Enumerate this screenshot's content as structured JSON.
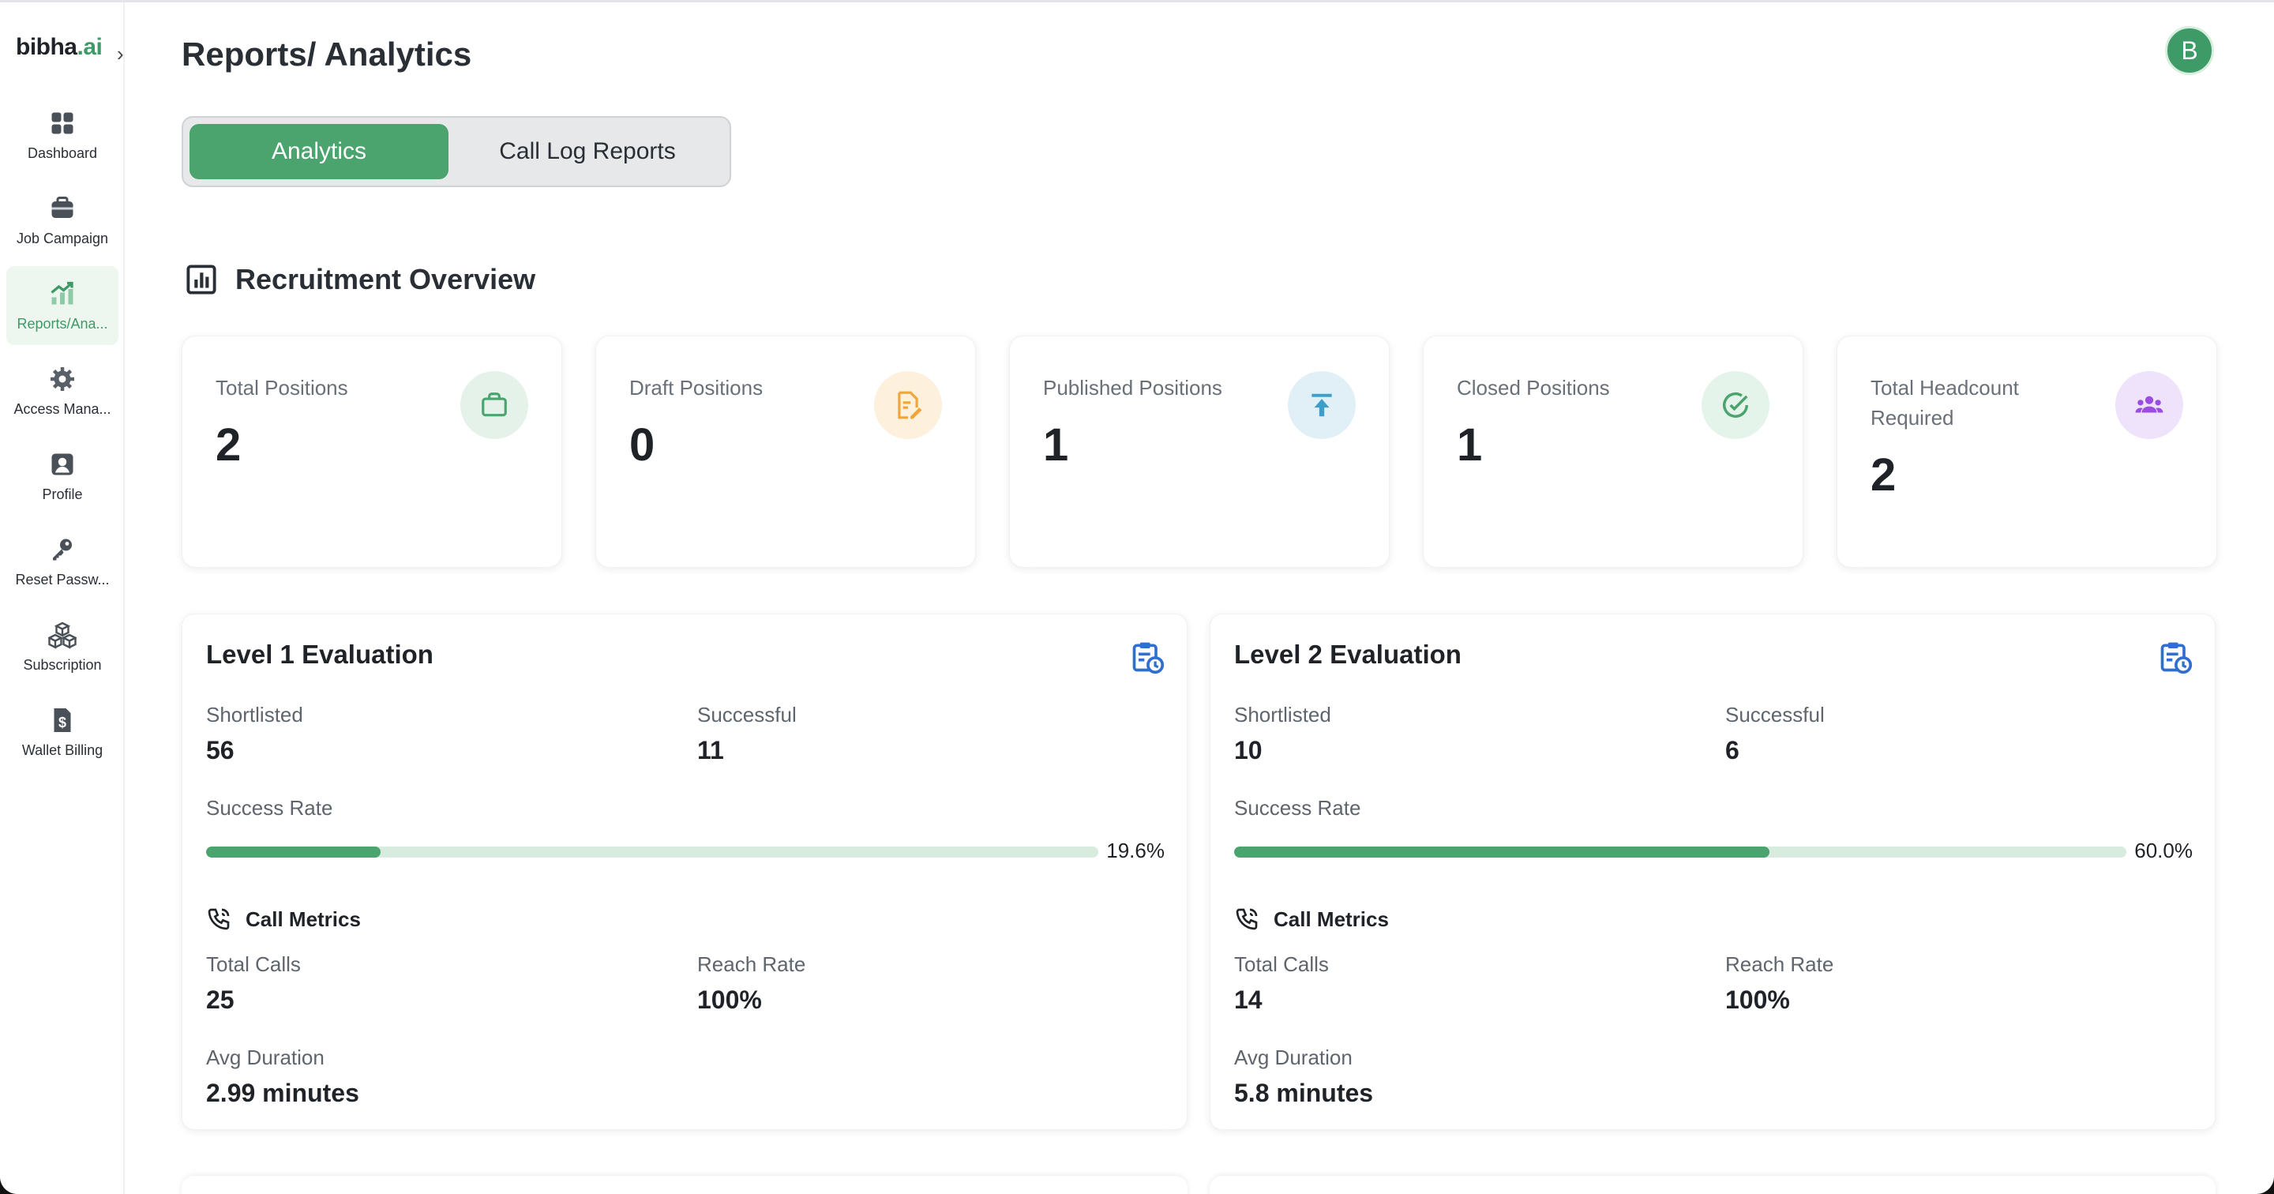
{
  "brand": {
    "logo_main": "bibha",
    "logo_accent": ".ai"
  },
  "sidebar": {
    "items": [
      {
        "label": "Dashboard",
        "icon": "grid-icon"
      },
      {
        "label": "Job Campaign",
        "icon": "briefcase-icon"
      },
      {
        "label": "Reports/Ana...",
        "icon": "chart-icon"
      },
      {
        "label": "Access Mana...",
        "icon": "gear-icon"
      },
      {
        "label": "Profile",
        "icon": "user-icon"
      },
      {
        "label": "Reset Passw...",
        "icon": "key-icon"
      },
      {
        "label": "Subscription",
        "icon": "boxes-icon"
      },
      {
        "label": "Wallet Billing",
        "icon": "dollar-icon"
      }
    ]
  },
  "header": {
    "title": "Reports/ Analytics",
    "avatar_letter": "B"
  },
  "tabs": [
    "Analytics",
    "Call Log Reports"
  ],
  "section": {
    "title": "Recruitment Overview"
  },
  "stats": [
    {
      "label": "Total Positions",
      "value": "2",
      "icon": "briefcase-icon",
      "bg": "#e5f2ea",
      "color": "#4ba46e"
    },
    {
      "label": "Draft Positions",
      "value": "0",
      "icon": "edit-doc-icon",
      "bg": "#fdf0dc",
      "color": "#f0a53a"
    },
    {
      "label": "Published Positions",
      "value": "1",
      "icon": "upload-icon",
      "bg": "#e1f0f7",
      "color": "#3d9fc9"
    },
    {
      "label": "Closed Positions",
      "value": "1",
      "icon": "check-circle-icon",
      "bg": "#e5f4ea",
      "color": "#4ba46e"
    },
    {
      "label": "Total Headcount Required",
      "value": "2",
      "icon": "group-icon",
      "bg": "#efe2fb",
      "color": "#9a4de0"
    }
  ],
  "evaluations": [
    {
      "title": "Level 1 Evaluation",
      "shortlisted_label": "Shortlisted",
      "shortlisted": "56",
      "successful_label": "Successful",
      "successful": "11",
      "success_rate_label": "Success Rate",
      "success_rate": 0.196,
      "success_rate_text": "19.6%",
      "metrics_title": "Call Metrics",
      "total_calls_label": "Total Calls",
      "total_calls": "25",
      "reach_rate_label": "Reach Rate",
      "reach_rate": "100%",
      "avg_duration_label": "Avg Duration",
      "avg_duration": "2.99 minutes"
    },
    {
      "title": "Level 2 Evaluation",
      "shortlisted_label": "Shortlisted",
      "shortlisted": "10",
      "successful_label": "Successful",
      "successful": "6",
      "success_rate_label": "Success Rate",
      "success_rate": 0.6,
      "success_rate_text": "60.0%",
      "metrics_title": "Call Metrics",
      "total_calls_label": "Total Calls",
      "total_calls": "14",
      "reach_rate_label": "Reach Rate",
      "reach_rate": "100%",
      "avg_duration_label": "Avg Duration",
      "avg_duration": "5.8 minutes"
    }
  ]
}
